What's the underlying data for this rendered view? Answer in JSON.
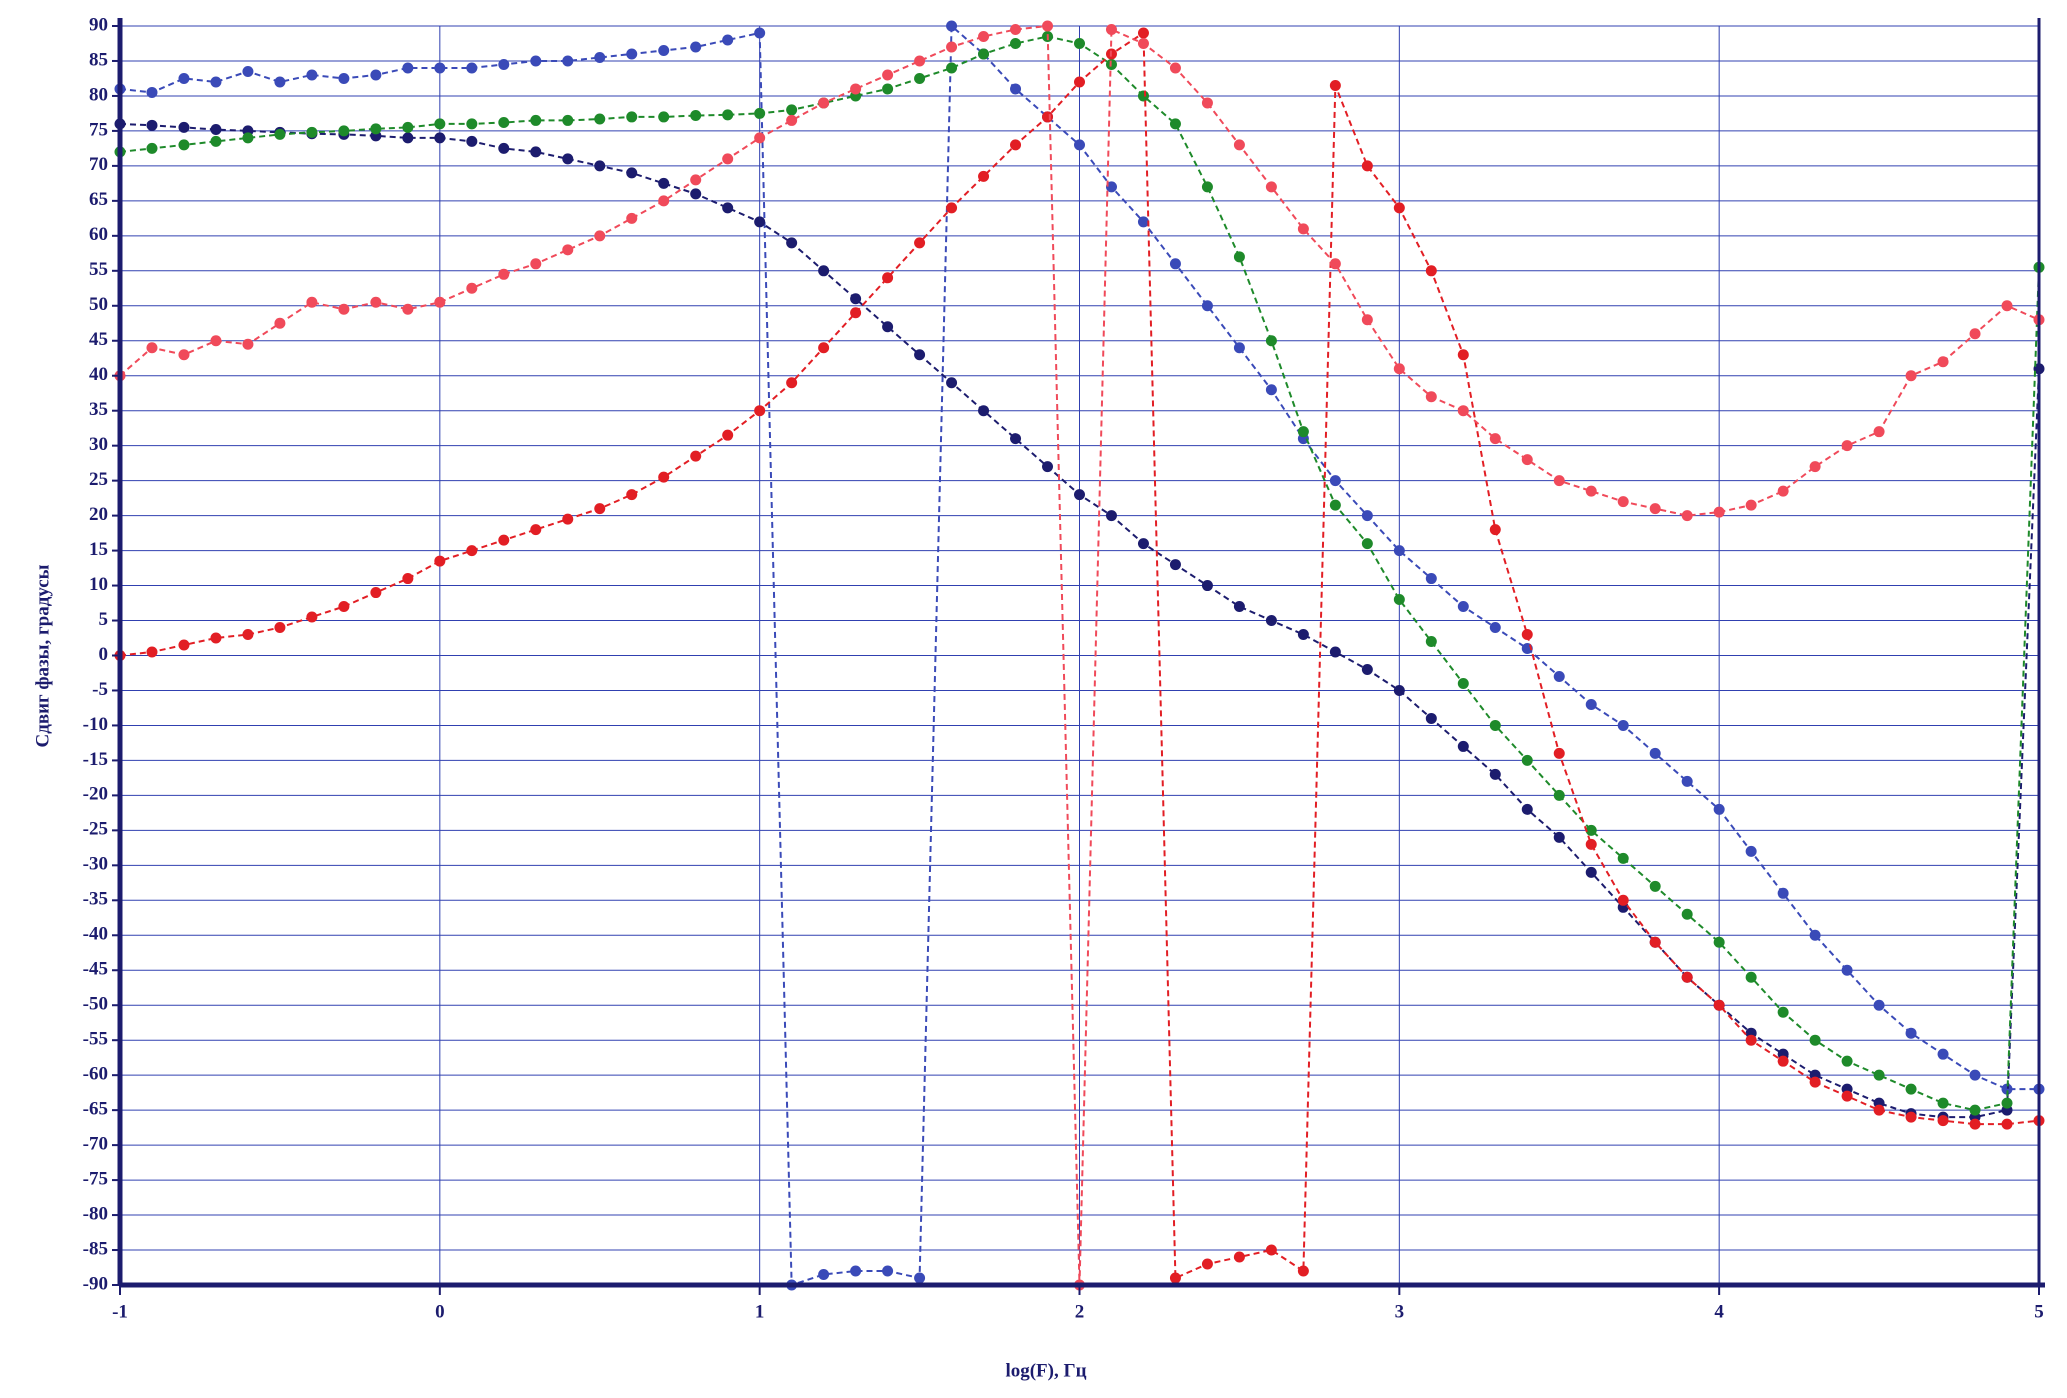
{
  "chart_data": {
    "type": "line",
    "x_label": "log(F), Гц",
    "y_label": "Сдвиг фазы, градусы",
    "xlim": [
      -1,
      5
    ],
    "ylim": [
      -90,
      90
    ],
    "xticks": [
      -1,
      0,
      1,
      2,
      3,
      4,
      5
    ],
    "yticks": [
      -90,
      -85,
      -80,
      -75,
      -70,
      -65,
      -60,
      -55,
      -50,
      -45,
      -40,
      -35,
      -30,
      -25,
      -20,
      -15,
      -10,
      -5,
      0,
      5,
      10,
      15,
      20,
      25,
      30,
      35,
      40,
      45,
      50,
      55,
      60,
      65,
      70,
      75,
      80,
      85,
      90
    ],
    "grid": true,
    "x": [
      -1,
      -0.9,
      -0.8,
      -0.7,
      -0.6,
      -0.5,
      -0.4,
      -0.3,
      -0.2,
      -0.1,
      0,
      0.1,
      0.2,
      0.3,
      0.4,
      0.5,
      0.6,
      0.7,
      0.8,
      0.9,
      1,
      1.1,
      1.2,
      1.3,
      1.4,
      1.5,
      1.6,
      1.7,
      1.8,
      1.9,
      2,
      2.1,
      2.2,
      2.3,
      2.4,
      2.5,
      2.6,
      2.7,
      2.8,
      2.9,
      3,
      3.1,
      3.2,
      3.3,
      3.4,
      3.5,
      3.6,
      3.7,
      3.8,
      3.9,
      4,
      4.1,
      4.2,
      4.3,
      4.4,
      4.5,
      4.6,
      4.7,
      4.8,
      4.9,
      5
    ],
    "series": [
      {
        "color": "#3a4ab8",
        "values": [
          81,
          80.5,
          82.5,
          82,
          83.5,
          82,
          83,
          82.5,
          83,
          84,
          84,
          84,
          84.5,
          85,
          85,
          85.5,
          86,
          86.5,
          87,
          88,
          89,
          -90,
          -88.5,
          -88,
          -88,
          -89,
          90,
          86,
          81,
          77,
          73,
          67,
          62,
          56,
          50,
          44,
          38,
          31,
          25,
          20,
          15,
          11,
          7,
          4,
          1,
          -3,
          -7,
          -10,
          -14,
          -18,
          -22,
          -28,
          -34,
          -40,
          -45,
          -50,
          -54,
          -57,
          -60,
          -62,
          -62
        ]
      },
      {
        "color": "#1c1c6e",
        "values": [
          76,
          75.8,
          75.5,
          75.2,
          75,
          74.8,
          74.6,
          74.5,
          74.3,
          74,
          74,
          73.5,
          72.5,
          72,
          71,
          70,
          69,
          67.5,
          66,
          64,
          62,
          59,
          55,
          51,
          47,
          43,
          39,
          35,
          31,
          27,
          23,
          20,
          16,
          13,
          10,
          7,
          5,
          3,
          0.5,
          -2,
          -5,
          -9,
          -13,
          -17,
          -22,
          -26,
          -31,
          -36,
          -41,
          -46,
          -50,
          -54,
          -57,
          -60,
          -62,
          -64,
          -65.5,
          -66,
          -66,
          -65,
          41
        ]
      },
      {
        "color": "#1e8a2a",
        "values": [
          72,
          72.5,
          73,
          73.5,
          74,
          74.5,
          74.8,
          75,
          75.3,
          75.5,
          76,
          76,
          76.2,
          76.5,
          76.5,
          76.7,
          77,
          77,
          77.2,
          77.3,
          77.5,
          78,
          79,
          80,
          81,
          82.5,
          84,
          86,
          87.5,
          88.5,
          87.5,
          84.5,
          80,
          76,
          67,
          57,
          45,
          32,
          21.5,
          16,
          8,
          2,
          -4,
          -10,
          -15,
          -20,
          -25,
          -29,
          -33,
          -37,
          -41,
          -46,
          -51,
          -55,
          -58,
          -60,
          -62,
          -64,
          -65,
          -64,
          55.5
        ]
      },
      {
        "color": "#e21e24",
        "values": [
          0,
          0.5,
          1.5,
          2.5,
          3,
          4,
          5.5,
          7,
          9,
          11,
          13.5,
          15,
          16.5,
          18,
          19.5,
          21,
          23,
          25.5,
          28.5,
          31.5,
          35,
          39,
          44,
          49,
          54,
          59,
          64,
          68.5,
          73,
          77,
          82,
          86,
          89,
          -89,
          -87,
          -86,
          -85,
          -88,
          81.5,
          70,
          64,
          55,
          43,
          18,
          3,
          -14,
          -27,
          -35,
          -41,
          -46,
          -50,
          -55,
          -58,
          -61,
          -63,
          -65,
          -66,
          -66.5,
          -67,
          -67,
          -66.5
        ]
      },
      {
        "color": "#f04a5a",
        "values": [
          40,
          44,
          43,
          45,
          44.5,
          47.5,
          50.5,
          49.5,
          50.5,
          49.5,
          50.5,
          52.5,
          54.5,
          56,
          58,
          60,
          62.5,
          65,
          68,
          71,
          74,
          76.5,
          79,
          81,
          83,
          85,
          87,
          88.5,
          89.5,
          90,
          -90,
          89.5,
          87.5,
          84,
          79,
          73,
          67,
          61,
          56,
          48,
          41,
          37,
          35,
          31,
          28,
          25,
          23.5,
          22,
          21,
          20,
          20.5,
          21.5,
          23.5,
          27,
          30,
          32,
          40,
          42,
          46,
          50,
          48
        ]
      }
    ]
  }
}
